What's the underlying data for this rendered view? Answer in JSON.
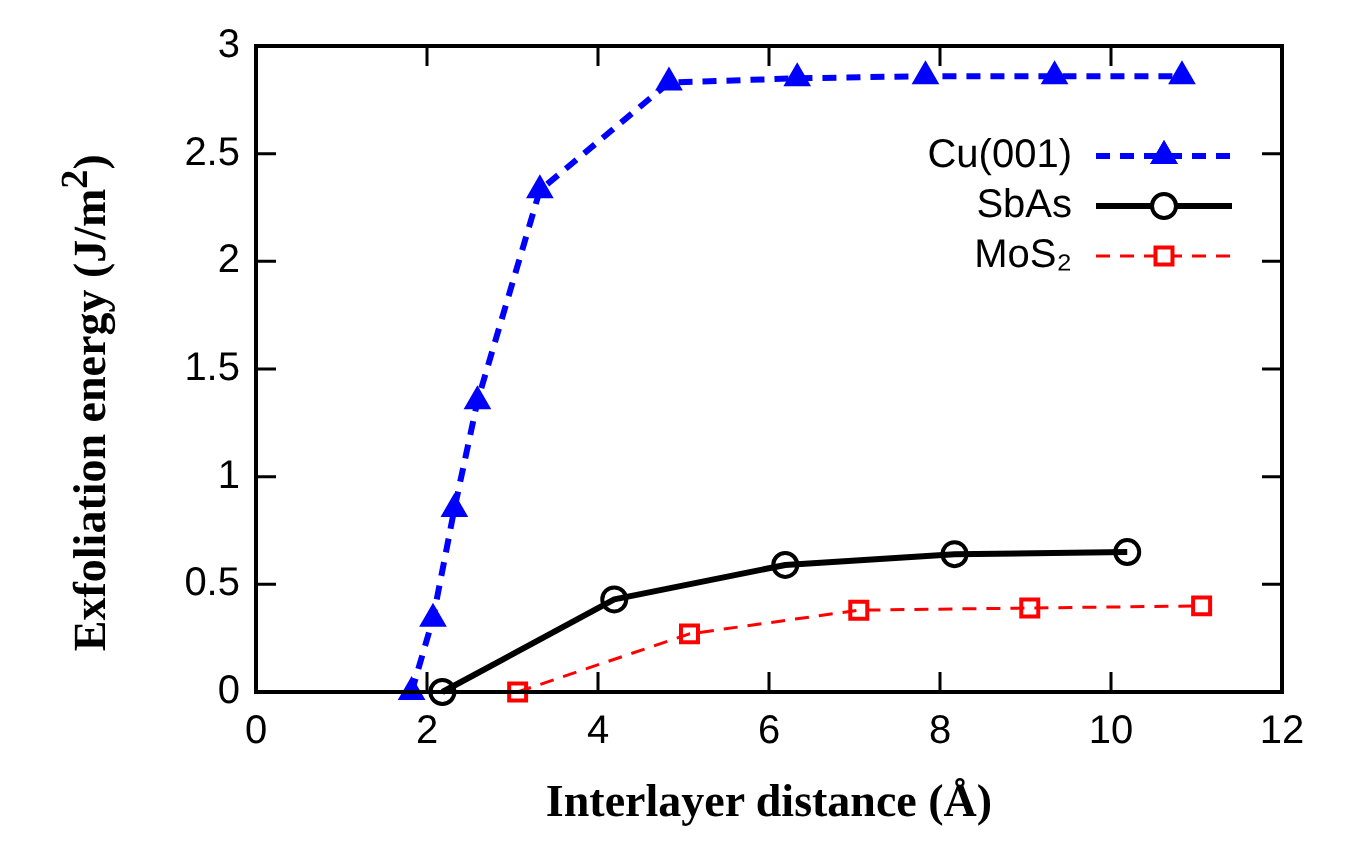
{
  "chart_data": {
    "type": "line",
    "xlabel": "Interlayer distance (Å)",
    "ylabel": "Exfoliation energy (J/m$^{2}$)",
    "xlim": [
      0,
      12
    ],
    "xticks": [
      0,
      2,
      4,
      6,
      8,
      10,
      12
    ],
    "ylim": [
      0,
      3
    ],
    "yticks": [
      0,
      0.5,
      1,
      1.5,
      2,
      2.5,
      3
    ],
    "legend": "top right",
    "series": [
      {
        "name": "Cu(001)",
        "color": "#0000ff",
        "marker": "triangle",
        "line_style": "dashed",
        "x": [
          1.82,
          2.07,
          2.32,
          2.59,
          3.32,
          4.83,
          6.33,
          7.83,
          9.34,
          10.83
        ],
        "values": [
          0,
          0.34,
          0.85,
          1.35,
          2.33,
          2.83,
          2.85,
          2.86,
          2.86,
          2.86
        ]
      },
      {
        "name": "SbAs",
        "color": "#000000",
        "marker": "circle",
        "line_style": "solid",
        "x": [
          2.18,
          4.19,
          6.19,
          8.17,
          10.19
        ],
        "values": [
          0,
          0.43,
          0.59,
          0.64,
          0.65
        ]
      },
      {
        "name": "MoS₂",
        "color": "#ff0000",
        "marker": "square",
        "line_style": "dashed",
        "x": [
          3.06,
          5.07,
          7.05,
          9.05,
          11.06
        ],
        "values": [
          0,
          0.27,
          0.38,
          0.39,
          0.4
        ]
      }
    ]
  }
}
